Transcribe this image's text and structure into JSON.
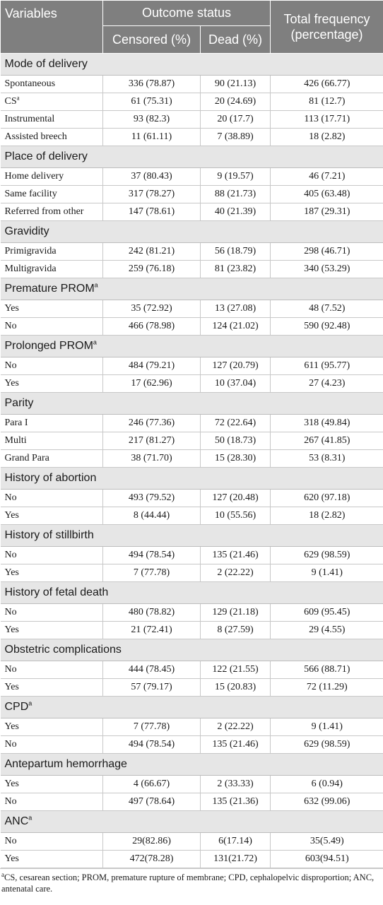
{
  "header": {
    "variables": "Variables",
    "outcome_status": "Outcome status",
    "total_frequency": "Total frequency (percentage)",
    "censored": "Censored (%)",
    "dead": "Dead (%)"
  },
  "sections": [
    {
      "title": "Mode of delivery",
      "rows": [
        {
          "label": "Spontaneous",
          "censored": "336 (78.87)",
          "dead": "90 (21.13)",
          "total": "426 (66.77)"
        },
        {
          "label": "CS",
          "sup": "a",
          "censored": "61 (75.31)",
          "dead": "20 (24.69)",
          "total": "81 (12.7)"
        },
        {
          "label": "Instrumental",
          "censored": "93 (82.3)",
          "dead": "20 (17.7)",
          "total": "113 (17.71)"
        },
        {
          "label": "Assisted breech",
          "censored": "11 (61.11)",
          "dead": "7 (38.89)",
          "total": "18 (2.82)"
        }
      ]
    },
    {
      "title": "Place of delivery",
      "rows": [
        {
          "label": "Home delivery",
          "censored": "37 (80.43)",
          "dead": "9 (19.57)",
          "total": "46 (7.21)"
        },
        {
          "label": "Same facility",
          "censored": "317 (78.27)",
          "dead": "88 (21.73)",
          "total": "405 (63.48)"
        },
        {
          "label": "Referred from other",
          "censored": "147 (78.61)",
          "dead": "40 (21.39)",
          "total": "187 (29.31)"
        }
      ]
    },
    {
      "title": "Gravidity",
      "rows": [
        {
          "label": "Primigravida",
          "censored": "242 (81.21)",
          "dead": "56 (18.79)",
          "total": "298 (46.71)"
        },
        {
          "label": "Multigravida",
          "censored": "259 (76.18)",
          "dead": "81 (23.82)",
          "total": "340 (53.29)"
        }
      ]
    },
    {
      "title": "Premature PROM",
      "sup": "a",
      "rows": [
        {
          "label": "Yes",
          "censored": "35 (72.92)",
          "dead": "13 (27.08)",
          "total": "48 (7.52)"
        },
        {
          "label": "No",
          "censored": "466 (78.98)",
          "dead": "124 (21.02)",
          "total": "590 (92.48)"
        }
      ]
    },
    {
      "title": "Prolonged PROM",
      "sup": "a",
      "rows": [
        {
          "label": "No",
          "censored": "484 (79.21)",
          "dead": "127 (20.79)",
          "total": "611 (95.77)"
        },
        {
          "label": "Yes",
          "censored": "17 (62.96)",
          "dead": "10 (37.04)",
          "total": "27 (4.23)"
        }
      ]
    },
    {
      "title": "Parity",
      "rows": [
        {
          "label": "Para I",
          "censored": "246 (77.36)",
          "dead": "72 (22.64)",
          "total": "318 (49.84)"
        },
        {
          "label": "Multi",
          "censored": "217 (81.27)",
          "dead": "50 (18.73)",
          "total": "267 (41.85)"
        },
        {
          "label": "Grand Para",
          "censored": "38 (71.70)",
          "dead": "15 (28.30)",
          "total": "53 (8.31)"
        }
      ]
    },
    {
      "title": "History of abortion",
      "rows": [
        {
          "label": "No",
          "censored": "493 (79.52)",
          "dead": "127 (20.48)",
          "total": "620 (97.18)"
        },
        {
          "label": "Yes",
          "censored": "8 (44.44)",
          "dead": "10 (55.56)",
          "total": "18 (2.82)"
        }
      ]
    },
    {
      "title": "History of stillbirth",
      "rows": [
        {
          "label": "No",
          "censored": "494 (78.54)",
          "dead": "135 (21.46)",
          "total": "629 (98.59)"
        },
        {
          "label": "Yes",
          "censored": "7 (77.78)",
          "dead": "2 (22.22)",
          "total": "9 (1.41)"
        }
      ]
    },
    {
      "title": "History of fetal death",
      "rows": [
        {
          "label": "No",
          "censored": "480 (78.82)",
          "dead": "129 (21.18)",
          "total": "609 (95.45)"
        },
        {
          "label": "Yes",
          "censored": "21 (72.41)",
          "dead": "8 (27.59)",
          "total": "29 (4.55)"
        }
      ]
    },
    {
      "title": "Obstetric complications",
      "rows": [
        {
          "label": "No",
          "censored": "444 (78.45)",
          "dead": "122 (21.55)",
          "total": "566 (88.71)"
        },
        {
          "label": "Yes",
          "censored": "57 (79.17)",
          "dead": "15 (20.83)",
          "total": "72 (11.29)"
        }
      ]
    },
    {
      "title": "CPD",
      "sup": "a",
      "rows": [
        {
          "label": "Yes",
          "censored": "7 (77.78)",
          "dead": "2 (22.22)",
          "total": "9 (1.41)"
        },
        {
          "label": "No",
          "censored": "494 (78.54)",
          "dead": "135 (21.46)",
          "total": "629 (98.59)"
        }
      ]
    },
    {
      "title": "Antepartum hemorrhage",
      "rows": [
        {
          "label": "Yes",
          "censored": "4 (66.67)",
          "dead": "2 (33.33)",
          "total": "6 (0.94)"
        },
        {
          "label": "No",
          "censored": "497 (78.64)",
          "dead": "135 (21.36)",
          "total": "632 (99.06)"
        }
      ]
    },
    {
      "title": "ANC",
      "sup": "a",
      "rows": [
        {
          "label": "No",
          "censored": "29(82.86)",
          "dead": "6(17.14)",
          "total": "35(5.49)"
        },
        {
          "label": "Yes",
          "censored": "472(78.28)",
          "dead": "131(21.72)",
          "total": "603(94.51)"
        }
      ]
    }
  ],
  "footnote": {
    "marker": "a",
    "text": "CS, cesarean section; PROM, premature rupture of membrane; CPD, cephalopelvic disproportion; ANC, antenatal care."
  }
}
